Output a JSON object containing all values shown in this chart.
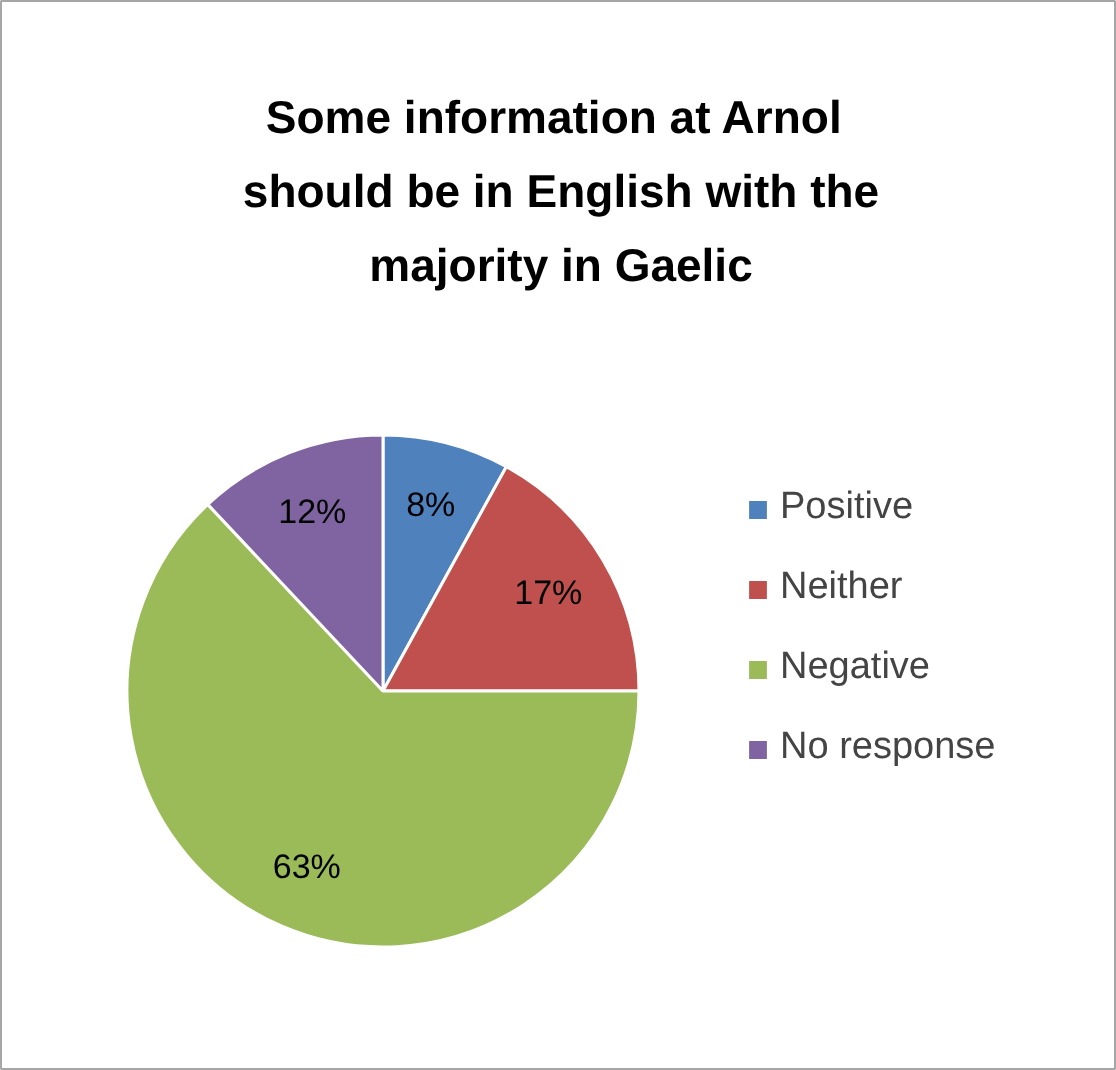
{
  "chart_data": {
    "type": "pie",
    "title": "Some information at  Arnol should be in English with the majority in Gaelic",
    "categories": [
      "Positive",
      "Neither",
      "Negative",
      "No response"
    ],
    "values": [
      8,
      17,
      63,
      12
    ],
    "colors": [
      "#4f81bd",
      "#c0504d",
      "#9bbb59",
      "#8064a2"
    ],
    "value_labels": [
      "8%",
      "17%",
      "63%",
      "12%"
    ],
    "legend": "right"
  }
}
